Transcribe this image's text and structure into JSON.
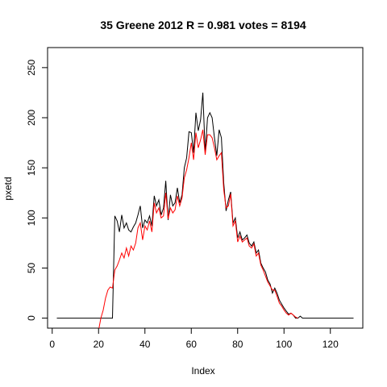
{
  "chart_data": {
    "type": "line",
    "title": "35 Greene 2012 R = 0.981 votes = 8194",
    "xlabel": "Index",
    "ylabel": "pxetd",
    "xlim": [
      -2,
      134
    ],
    "ylim": [
      -10,
      270
    ],
    "x_ticks": [
      0,
      20,
      40,
      60,
      80,
      100,
      120
    ],
    "y_ticks": [
      0,
      50,
      100,
      150,
      200,
      250
    ],
    "series": [
      {
        "name": "black",
        "color": "#000000",
        "x": [
          2,
          5,
          10,
          15,
          20,
          25,
          26,
          27,
          28,
          29,
          30,
          31,
          32,
          33,
          34,
          35,
          36,
          37,
          38,
          39,
          40,
          41,
          42,
          43,
          44,
          45,
          46,
          47,
          48,
          49,
          50,
          51,
          52,
          53,
          54,
          55,
          56,
          57,
          58,
          59,
          60,
          61,
          62,
          63,
          64,
          65,
          66,
          67,
          68,
          69,
          70,
          71,
          72,
          73,
          74,
          75,
          76,
          77,
          78,
          79,
          80,
          81,
          82,
          83,
          84,
          85,
          86,
          87,
          88,
          89,
          90,
          91,
          92,
          93,
          94,
          95,
          96,
          97,
          98,
          99,
          100,
          101,
          102,
          103,
          104,
          105,
          106,
          107,
          108,
          109,
          110,
          115,
          120,
          125,
          130
        ],
        "y": [
          0,
          0,
          0,
          0,
          0,
          0,
          0,
          102,
          97,
          86,
          103,
          90,
          95,
          88,
          86,
          91,
          95,
          103,
          112,
          90,
          98,
          95,
          102,
          92,
          122,
          112,
          118,
          103,
          110,
          137,
          98,
          123,
          112,
          115,
          130,
          115,
          123,
          150,
          160,
          186,
          185,
          165,
          205,
          187,
          198,
          225,
          165,
          200,
          205,
          200,
          180,
          162,
          188,
          180,
          135,
          107,
          118,
          126,
          95,
          100,
          80,
          86,
          78,
          80,
          83,
          75,
          72,
          76,
          65,
          68,
          55,
          50,
          46,
          38,
          34,
          25,
          30,
          25,
          18,
          14,
          10,
          7,
          4,
          5,
          3,
          0,
          0,
          2,
          0,
          0,
          0,
          0,
          0,
          0,
          0
        ]
      },
      {
        "name": "red",
        "color": "#ff0000",
        "x": [
          20,
          21,
          22,
          23,
          24,
          25,
          26,
          27,
          28,
          29,
          30,
          31,
          32,
          33,
          34,
          35,
          36,
          37,
          38,
          39,
          40,
          41,
          42,
          43,
          44,
          45,
          46,
          47,
          48,
          49,
          50,
          51,
          52,
          53,
          54,
          55,
          56,
          57,
          58,
          59,
          60,
          61,
          62,
          63,
          64,
          65,
          66,
          67,
          68,
          69,
          70,
          71,
          72,
          73,
          74,
          75,
          76,
          77,
          78,
          79,
          80,
          81,
          82,
          83,
          84,
          85,
          86,
          87,
          88,
          89,
          90,
          91,
          92,
          93,
          94,
          95,
          96,
          97,
          98,
          99,
          100,
          101,
          102,
          103,
          104,
          105,
          106
        ],
        "y": [
          -12,
          0,
          8,
          20,
          28,
          31,
          30,
          48,
          52,
          58,
          65,
          60,
          70,
          62,
          72,
          68,
          75,
          90,
          95,
          78,
          92,
          88,
          97,
          86,
          115,
          105,
          110,
          100,
          102,
          125,
          99,
          110,
          105,
          108,
          122,
          112,
          120,
          140,
          148,
          160,
          175,
          158,
          185,
          170,
          178,
          188,
          163,
          183,
          183,
          180,
          170,
          158,
          162,
          165,
          128,
          110,
          112,
          124,
          92,
          97,
          76,
          82,
          76,
          78,
          80,
          72,
          70,
          74,
          62,
          65,
          53,
          48,
          42,
          36,
          32,
          28,
          28,
          22,
          15,
          12,
          8,
          5,
          3,
          5,
          3,
          1,
          0
        ]
      }
    ]
  }
}
